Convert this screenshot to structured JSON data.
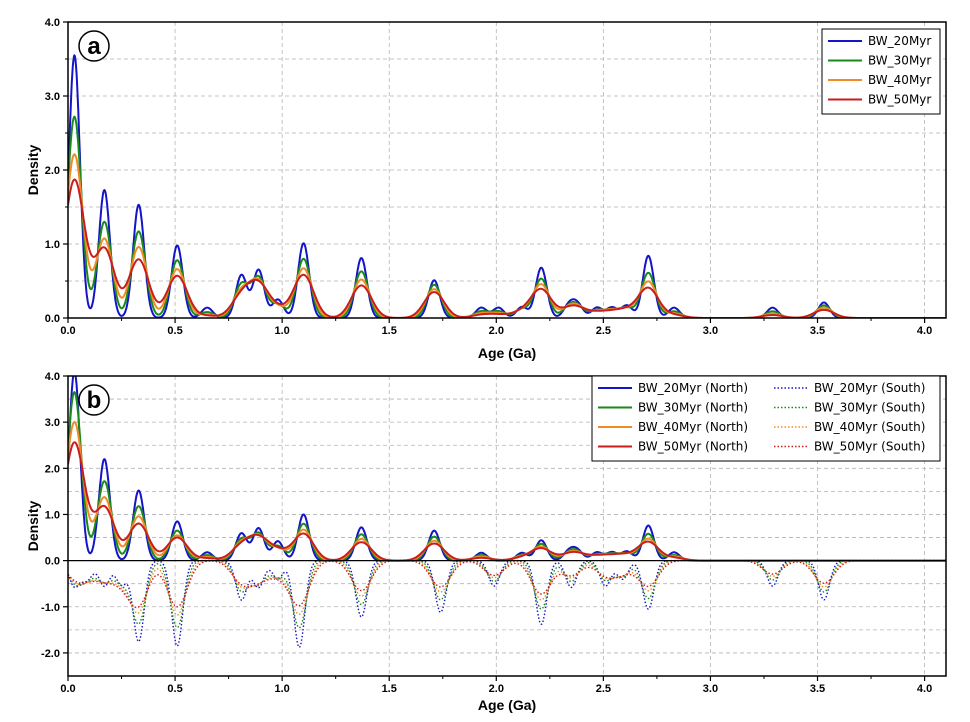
{
  "colors": {
    "BW_20Myr": "#1414c8",
    "BW_30Myr": "#1a8a1a",
    "BW_40Myr": "#f08c28",
    "BW_50Myr": "#c81e1e",
    "grid": "#b4b4b4"
  },
  "chart_data": [
    {
      "panel": "a",
      "type": "line",
      "xlabel": "Age (Ga)",
      "ylabel": "Density",
      "xlim": [
        0.0,
        4.1
      ],
      "ylim": [
        0.0,
        4.0
      ],
      "xticks": [
        "0.0",
        "0.5",
        "1.0",
        "1.5",
        "2.0",
        "2.5",
        "3.0",
        "3.5",
        "4.0"
      ],
      "yticks": [
        "0.0",
        "1.0",
        "2.0",
        "3.0",
        "4.0"
      ],
      "grid": true,
      "legend_position": "top-right",
      "peak_ages": [
        0.03,
        0.17,
        0.33,
        0.51,
        0.65,
        0.81,
        0.89,
        0.98,
        1.1,
        1.37,
        1.71,
        1.93,
        2.01,
        2.12,
        2.21,
        2.34,
        2.38,
        2.47,
        2.54,
        2.61,
        2.71,
        2.83,
        3.29,
        3.53
      ],
      "series": [
        {
          "name": "BW_20Myr",
          "color_key": "BW_20Myr",
          "values": [
            3.55,
            1.73,
            1.53,
            0.98,
            0.14,
            0.58,
            0.65,
            0.25,
            1.01,
            0.81,
            0.51,
            0.14,
            0.14,
            0.15,
            0.68,
            0.17,
            0.17,
            0.14,
            0.14,
            0.17,
            0.84,
            0.14,
            0.14,
            0.21
          ]
        },
        {
          "name": "BW_30Myr",
          "color_key": "BW_30Myr",
          "values": [
            2.72,
            1.3,
            1.17,
            0.78,
            0.08,
            0.45,
            0.54,
            0.18,
            0.8,
            0.63,
            0.45,
            0.09,
            0.09,
            0.12,
            0.53,
            0.13,
            0.13,
            0.1,
            0.1,
            0.13,
            0.61,
            0.09,
            0.09,
            0.17
          ]
        },
        {
          "name": "BW_40Myr",
          "color_key": "BW_40Myr",
          "values": [
            2.21,
            1.07,
            0.96,
            0.66,
            0.05,
            0.35,
            0.47,
            0.14,
            0.67,
            0.52,
            0.39,
            0.06,
            0.06,
            0.1,
            0.45,
            0.11,
            0.11,
            0.08,
            0.08,
            0.11,
            0.49,
            0.06,
            0.06,
            0.14
          ]
        },
        {
          "name": "BW_50Myr",
          "color_key": "BW_50Myr",
          "values": [
            1.86,
            0.93,
            0.79,
            0.57,
            0.03,
            0.28,
            0.42,
            0.11,
            0.58,
            0.44,
            0.35,
            0.04,
            0.04,
            0.08,
            0.38,
            0.09,
            0.09,
            0.06,
            0.06,
            0.09,
            0.4,
            0.04,
            0.04,
            0.11
          ]
        }
      ]
    },
    {
      "panel": "b",
      "type": "line",
      "xlabel": "Age (Ga)",
      "ylabel": "Density",
      "xlim": [
        0.0,
        4.1
      ],
      "ylim": [
        -2.5,
        4.0
      ],
      "xticks": [
        "0.0",
        "0.5",
        "1.0",
        "1.5",
        "2.0",
        "2.5",
        "3.0",
        "3.5",
        "4.0"
      ],
      "yticks": [
        "-2.0",
        "-1.0",
        "0.0",
        "1.0",
        "2.0",
        "3.0",
        "4.0"
      ],
      "grid": true,
      "legend_position": "top-right",
      "north_peak_ages": [
        0.03,
        0.17,
        0.33,
        0.51,
        0.65,
        0.81,
        0.89,
        0.98,
        1.1,
        1.37,
        1.71,
        1.93,
        2.12,
        2.21,
        2.34,
        2.38,
        2.47,
        2.54,
        2.61,
        2.71,
        2.83
      ],
      "south_peak_ages": [
        0.03,
        0.09,
        0.17,
        0.25,
        0.33,
        0.51,
        0.81,
        0.89,
        0.98,
        1.08,
        1.37,
        1.74,
        1.99,
        2.21,
        2.35,
        2.51,
        2.59,
        2.71,
        3.29,
        3.53
      ],
      "series": [
        {
          "name": "BW_20Myr (North)",
          "color_key": "BW_20Myr",
          "dash": "solid",
          "values": [
            4.1,
            2.2,
            1.52,
            0.85,
            0.18,
            0.59,
            0.7,
            0.42,
            1.0,
            0.72,
            0.65,
            0.17,
            0.17,
            0.44,
            0.2,
            0.2,
            0.18,
            0.18,
            0.2,
            0.76,
            0.18
          ]
        },
        {
          "name": "BW_30Myr (North)",
          "color_key": "BW_30Myr",
          "dash": "solid",
          "values": [
            3.65,
            1.72,
            1.18,
            0.65,
            0.12,
            0.46,
            0.58,
            0.31,
            0.8,
            0.57,
            0.52,
            0.12,
            0.12,
            0.36,
            0.15,
            0.15,
            0.13,
            0.13,
            0.15,
            0.58,
            0.12
          ]
        },
        {
          "name": "BW_40Myr (North)",
          "color_key": "BW_40Myr",
          "dash": "solid",
          "values": [
            3.0,
            1.37,
            0.96,
            0.55,
            0.08,
            0.37,
            0.5,
            0.24,
            0.67,
            0.47,
            0.43,
            0.09,
            0.09,
            0.3,
            0.12,
            0.12,
            0.1,
            0.1,
            0.12,
            0.47,
            0.09
          ]
        },
        {
          "name": "BW_50Myr (North)",
          "color_key": "BW_50Myr",
          "dash": "solid",
          "values": [
            2.55,
            1.15,
            0.8,
            0.5,
            0.05,
            0.3,
            0.45,
            0.2,
            0.58,
            0.4,
            0.37,
            0.06,
            0.06,
            0.26,
            0.1,
            0.1,
            0.08,
            0.08,
            0.1,
            0.4,
            0.06
          ]
        },
        {
          "name": "BW_20Myr (South)",
          "color_key": "BW_20Myr",
          "dash": "dotted",
          "values": [
            -0.55,
            -0.4,
            -0.55,
            -0.52,
            -1.75,
            -1.85,
            -0.85,
            -0.58,
            -0.4,
            -1.88,
            -1.22,
            -1.12,
            -0.55,
            -1.38,
            -0.58,
            -0.55,
            -0.4,
            -1.05,
            -0.55,
            -0.85
          ]
        },
        {
          "name": "BW_30Myr (South)",
          "color_key": "BW_30Myr",
          "dash": "dotted",
          "values": [
            -0.45,
            -0.35,
            -0.45,
            -0.45,
            -1.35,
            -1.45,
            -0.65,
            -0.5,
            -0.35,
            -1.45,
            -0.95,
            -0.85,
            -0.45,
            -1.05,
            -0.45,
            -0.42,
            -0.33,
            -0.82,
            -0.42,
            -0.68
          ]
        },
        {
          "name": "BW_40Myr (South)",
          "color_key": "BW_40Myr",
          "dash": "dotted",
          "values": [
            -0.38,
            -0.3,
            -0.38,
            -0.4,
            -1.08,
            -1.18,
            -0.52,
            -0.42,
            -0.3,
            -1.15,
            -0.77,
            -0.68,
            -0.37,
            -0.85,
            -0.37,
            -0.35,
            -0.28,
            -0.65,
            -0.34,
            -0.57
          ]
        },
        {
          "name": "BW_50Myr (South)",
          "color_key": "BW_50Myr",
          "dash": "dotted",
          "values": [
            -0.32,
            -0.25,
            -0.33,
            -0.35,
            -0.92,
            -1.0,
            -0.44,
            -0.36,
            -0.26,
            -0.95,
            -0.65,
            -0.57,
            -0.32,
            -0.72,
            -0.32,
            -0.3,
            -0.24,
            -0.55,
            -0.29,
            -0.49
          ]
        }
      ]
    }
  ]
}
